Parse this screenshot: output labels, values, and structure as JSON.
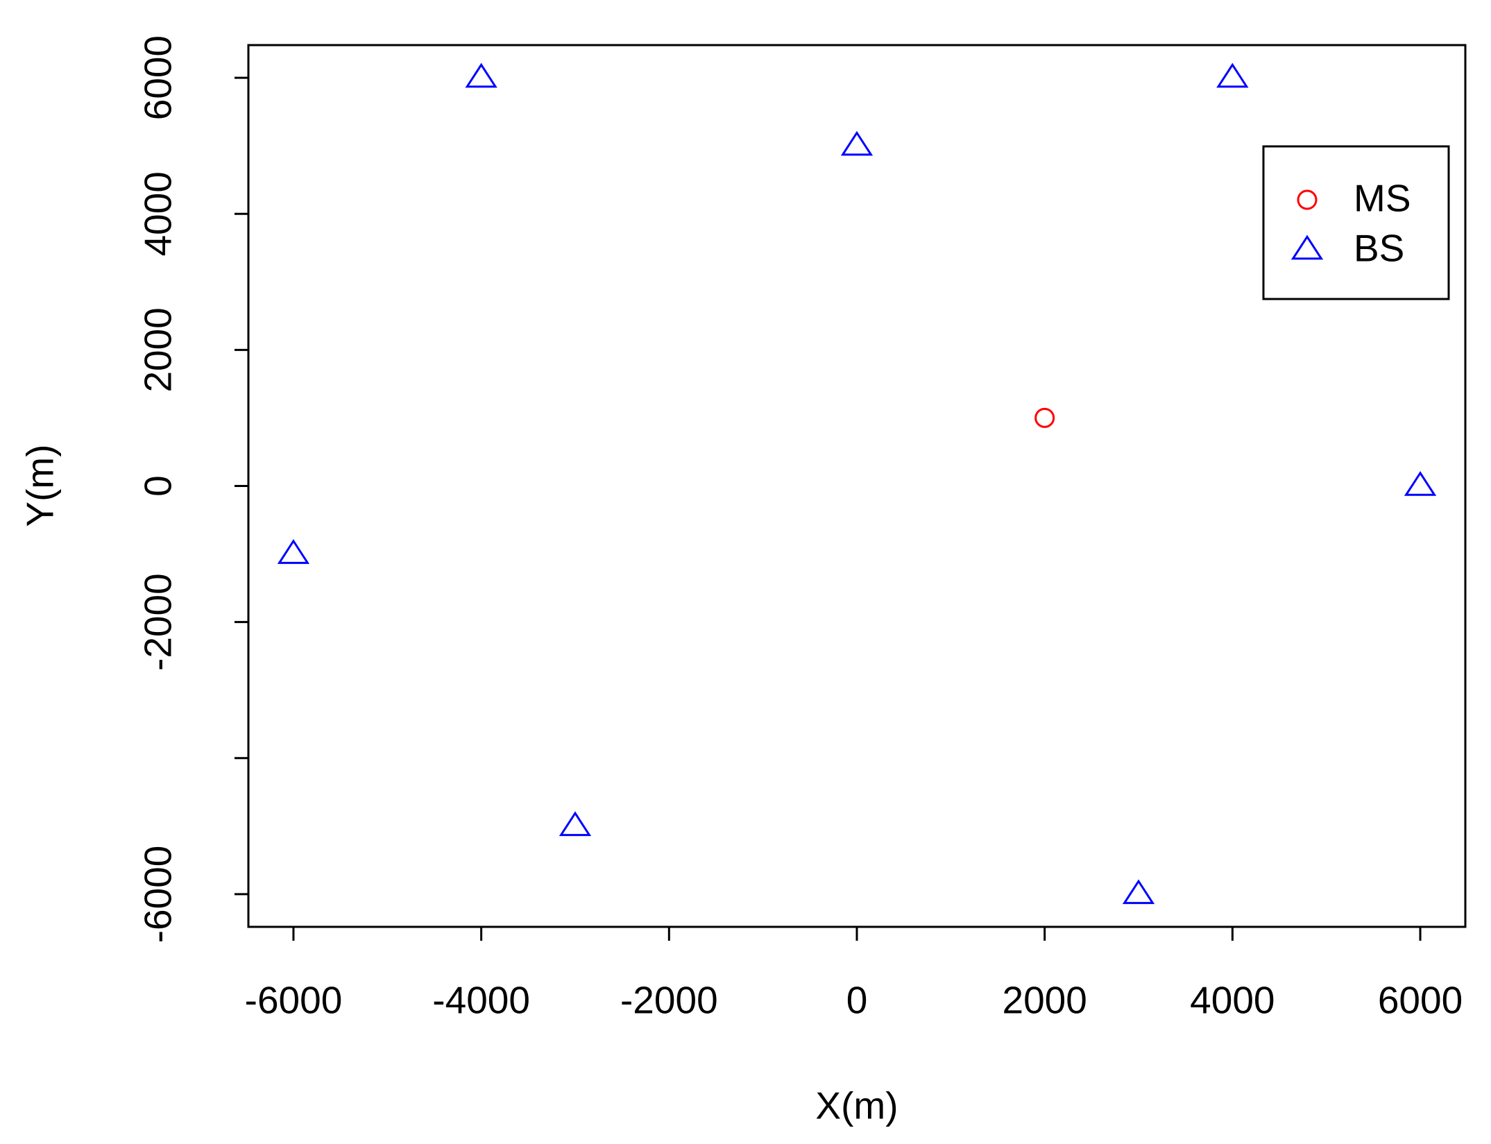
{
  "chart_data": {
    "type": "scatter",
    "x_label": "X(m)",
    "y_label": "Y(m)",
    "xlim": [
      -6480,
      6480
    ],
    "ylim": [
      -6480,
      6480
    ],
    "xticks": [
      -6000,
      -4000,
      -2000,
      0,
      2000,
      4000,
      6000
    ],
    "yticks": [
      -6000,
      {
        "value": -4000,
        "label": null
      },
      -2000,
      0,
      2000,
      4000,
      6000
    ],
    "legend": "topright",
    "series": [
      {
        "name": "MS",
        "color": "#ff0000",
        "marker": "circle",
        "x": [
          2000
        ],
        "y": [
          1000
        ]
      },
      {
        "name": "BS",
        "color": "#0000ff",
        "marker": "triangle",
        "x": [
          -4000,
          4000,
          0,
          6000,
          -6000,
          -3000,
          3000
        ],
        "y": [
          6000,
          6000,
          5000,
          0,
          -1000,
          -5000,
          -6000
        ]
      }
    ]
  }
}
